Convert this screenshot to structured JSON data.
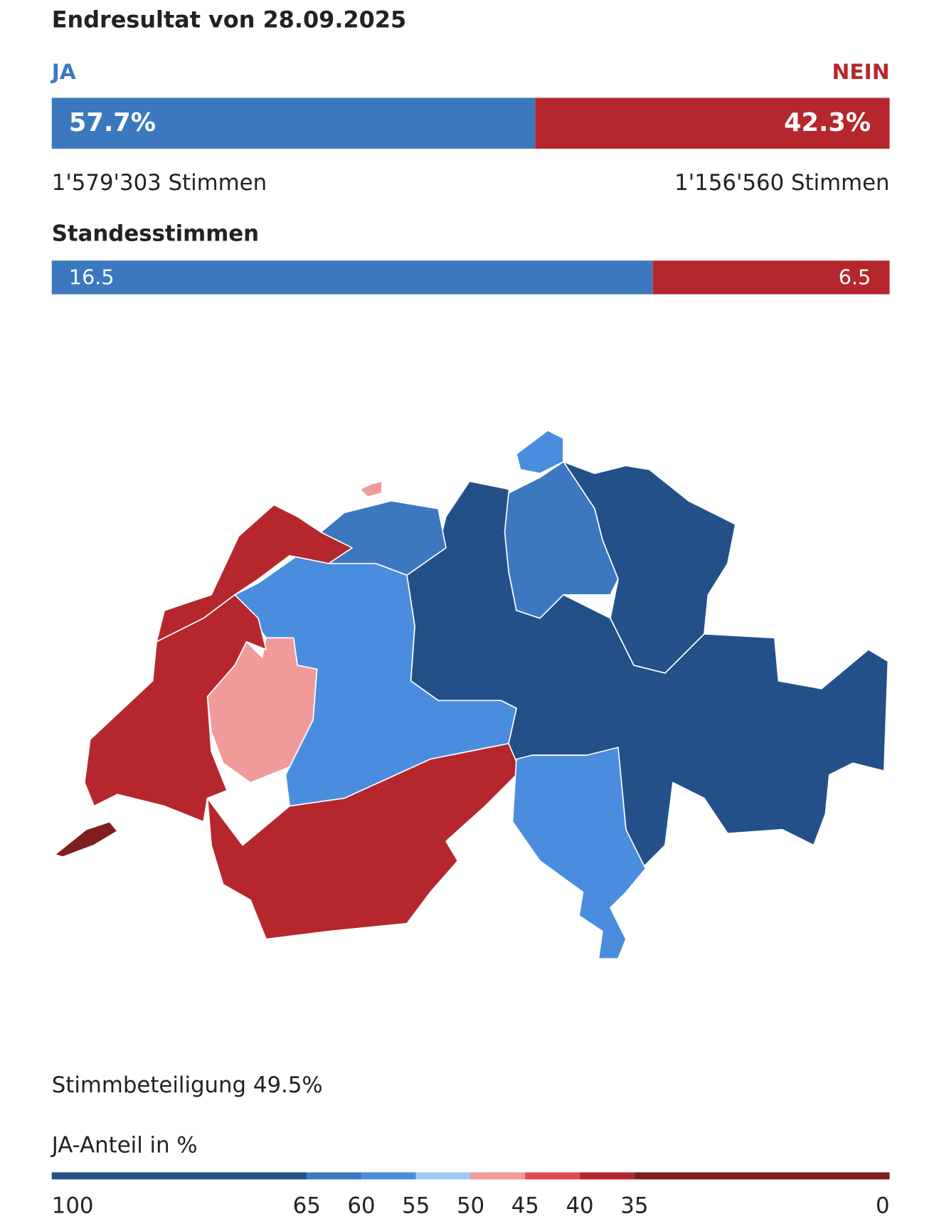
{
  "header": {
    "title": "Endresultat von 28.09.2025"
  },
  "result": {
    "ja": {
      "label": "JA",
      "share": 57.7,
      "share_label": "57.7%",
      "votes_label": "1'579'303 Stimmen",
      "color": "#3b78c0"
    },
    "nein": {
      "label": "NEIN",
      "share": 42.3,
      "share_label": "42.3%",
      "votes_label": "1'156'560 Stimmen",
      "color": "#b5272d"
    }
  },
  "standesstimmen": {
    "title": "Standesstimmen",
    "ja": 16.5,
    "nein": 6.5
  },
  "turnout": {
    "label": "Stimmbeteiligung 49.5%"
  },
  "legend": {
    "title": "JA-Anteil in %",
    "ticks": [
      100,
      65,
      60,
      55,
      50,
      45,
      40,
      35,
      0
    ],
    "colors": [
      "#24508a",
      "#3b78c0",
      "#4a8ddf",
      "#9fcbf5",
      "#f09a9a",
      "#df4c50",
      "#b5272d",
      "#7f1d1f"
    ]
  }
}
